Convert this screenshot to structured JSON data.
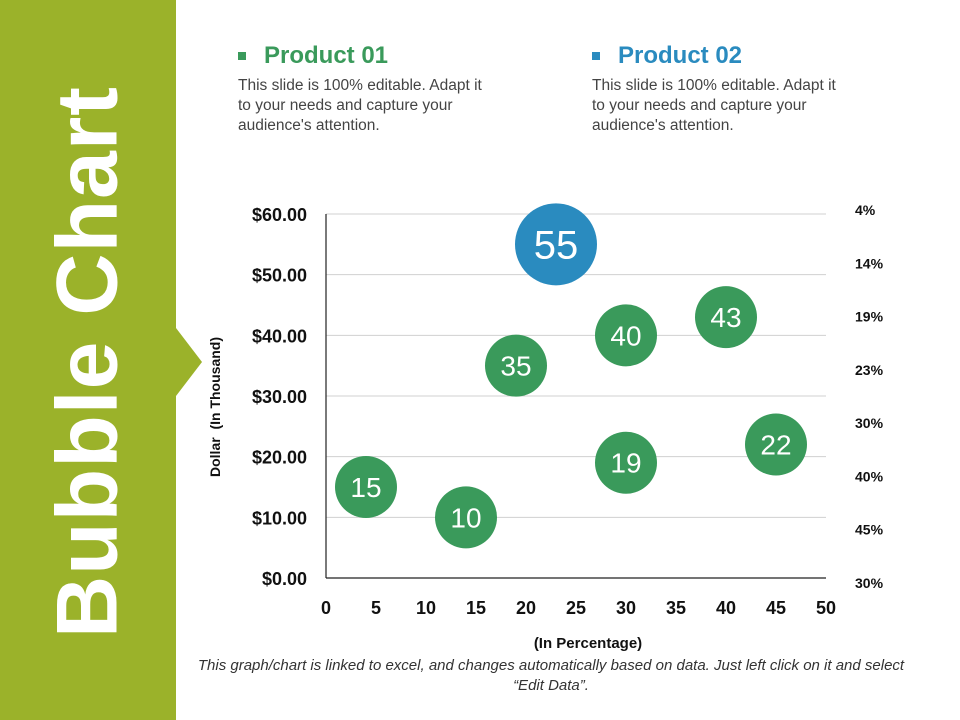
{
  "colors": {
    "sidebar": "#9bb22a",
    "product_01": "#3a9a5b",
    "product_02": "#2a8bbf",
    "text_dark": "#111111"
  },
  "sidebar": {
    "title": "Bubble Chart"
  },
  "legend": [
    {
      "title": "Product 01",
      "desc": "This slide is 100% editable. Adapt it to your needs and capture your audience's attention."
    },
    {
      "title": "Product 02",
      "desc": "This slide is 100% editable. Adapt it to your needs and capture your audience's attention."
    }
  ],
  "chart_data": {
    "type": "scatter",
    "subtype": "bubble",
    "xlabel": "(In Percentage)",
    "ylabel": "Dollar  (In Thousand)",
    "xlim": [
      0,
      50
    ],
    "ylim": [
      0,
      60
    ],
    "x_ticks": [
      "0",
      "5",
      "10",
      "15",
      "20",
      "25",
      "30",
      "35",
      "40",
      "45",
      "50"
    ],
    "y_ticks": [
      "$0.00",
      "$10.00",
      "$20.00",
      "$30.00",
      "$40.00",
      "$50.00",
      "$60.00"
    ],
    "right_labels": [
      "4%",
      "14%",
      "19%",
      "23%",
      "30%",
      "40%",
      "45%",
      "30%"
    ],
    "grid": true,
    "series": [
      {
        "name": "Product 01",
        "points": [
          {
            "x": 4,
            "y": 15,
            "label": "15"
          },
          {
            "x": 14,
            "y": 10,
            "label": "10"
          },
          {
            "x": 19,
            "y": 35,
            "label": "35"
          },
          {
            "x": 30,
            "y": 40,
            "label": "40"
          },
          {
            "x": 30,
            "y": 19,
            "label": "19"
          },
          {
            "x": 40,
            "y": 43,
            "label": "43"
          },
          {
            "x": 45,
            "y": 22,
            "label": "22"
          }
        ]
      },
      {
        "name": "Product 02",
        "points": [
          {
            "x": 23,
            "y": 55,
            "label": "55"
          }
        ]
      }
    ]
  },
  "footnote": "This graph/chart is linked to excel, and changes automatically based on data. Just left click on it and select “Edit Data”."
}
